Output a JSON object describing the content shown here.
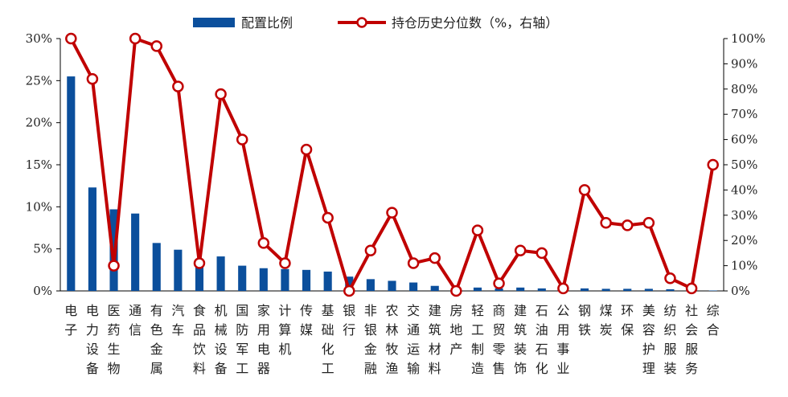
{
  "chart_data": {
    "type": "bar+line",
    "categories": [
      "电子",
      "电力设备",
      "医药生物",
      "通信",
      "有色金属",
      "汽车",
      "食品饮料",
      "机械设备",
      "国防军工",
      "家用电器",
      "计算机",
      "传媒",
      "基础化工",
      "银行",
      "非银金融",
      "农林牧渔",
      "交通运输",
      "建筑材料",
      "房地产",
      "轻工制造",
      "商贸零售",
      "建筑装饰",
      "石油石化",
      "公用事业",
      "钢铁",
      "煤炭",
      "环保",
      "美容护理",
      "纺织服装",
      "社会服务",
      "综合"
    ],
    "series": [
      {
        "name": "配置比例",
        "axis": "left",
        "kind": "bar",
        "color": "#0b4f9c",
        "values": [
          25.5,
          12.3,
          9.7,
          9.2,
          5.7,
          4.9,
          3.8,
          4.1,
          3.0,
          2.7,
          2.6,
          2.5,
          2.3,
          1.7,
          1.4,
          1.2,
          1.0,
          0.6,
          0.0,
          0.4,
          0.3,
          0.4,
          0.3,
          0.0,
          0.3,
          0.25,
          0.25,
          0.25,
          0.2,
          0.15,
          0.05
        ]
      },
      {
        "name": "持仓历史分位数（%，右轴）",
        "axis": "right",
        "kind": "line",
        "color": "#c00000",
        "values": [
          100,
          84,
          10,
          100,
          97,
          81,
          11,
          78,
          60,
          19,
          11,
          56,
          29,
          0,
          16,
          31,
          11,
          13,
          0,
          24,
          3,
          16,
          15,
          1,
          40,
          27,
          26,
          27,
          5,
          1,
          50
        ]
      }
    ],
    "yleft": {
      "ticks": [
        "0%",
        "5%",
        "10%",
        "15%",
        "20%",
        "25%",
        "30%"
      ],
      "lim": [
        0,
        30
      ]
    },
    "yright": {
      "ticks": [
        "0%",
        "10%",
        "20%",
        "30%",
        "40%",
        "50%",
        "60%",
        "70%",
        "80%",
        "90%",
        "100%"
      ],
      "lim": [
        0,
        100
      ]
    },
    "legend": {
      "placement": "top-center"
    }
  }
}
